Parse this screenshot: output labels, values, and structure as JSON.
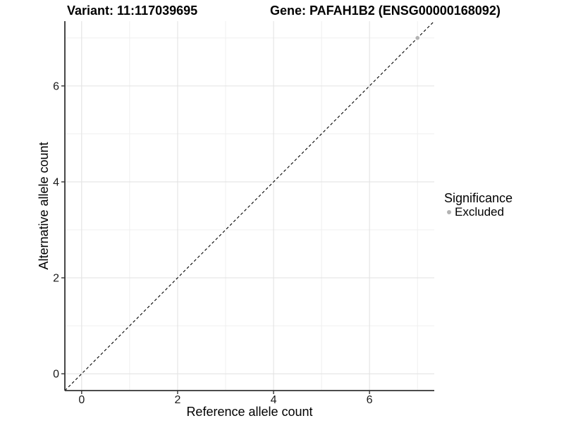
{
  "chart_data": {
    "type": "scatter",
    "title_left": "Variant: 11:117039695",
    "title_right": "Gene: PAFAH1B2 (ENSG00000168092)",
    "xlabel": "Reference allele count",
    "ylabel": "Alternative allele count",
    "xlim": [
      -0.35,
      7.35
    ],
    "ylim": [
      -0.35,
      7.35
    ],
    "x_ticks": [
      0,
      2,
      4,
      6
    ],
    "y_ticks": [
      0,
      2,
      4,
      6
    ],
    "x_minor_ticks": [
      1,
      3,
      5,
      7
    ],
    "y_minor_ticks": [
      1,
      3,
      5,
      7
    ],
    "grid": "on",
    "reference_line": {
      "type": "identity",
      "style": "dashed",
      "color": "#000000"
    },
    "series": [
      {
        "name": "Excluded",
        "color": "#b3b3b3",
        "points": [
          {
            "x": 7,
            "y": 7
          }
        ]
      }
    ],
    "legend": {
      "title": "Significance",
      "position": "right",
      "items": [
        {
          "label": "Excluded",
          "color": "#b3b3b3",
          "marker": "circle-icon"
        }
      ]
    },
    "colors": {
      "background": "#ffffff",
      "grid_major": "#e3e3e3",
      "grid_minor": "#efefef",
      "axis_line": "#333333",
      "tick_label": "#1a1a1a",
      "text": "#000000"
    }
  }
}
